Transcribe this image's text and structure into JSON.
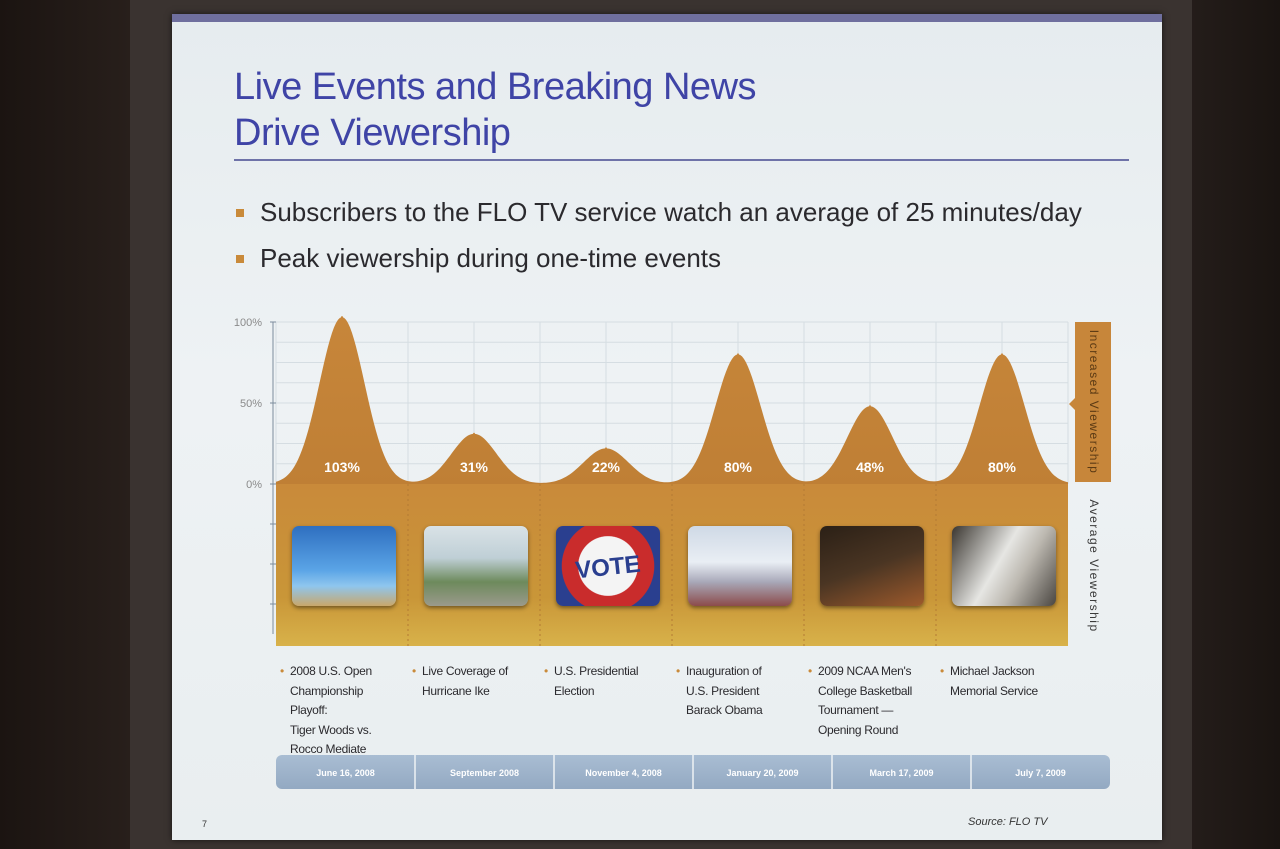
{
  "slide": {
    "title_line1": "Live Events and Breaking News",
    "title_line2": "Drive Viewership",
    "bullets": [
      "Subscribers to the FLO TV service watch an average of 25 minutes/day",
      "Peak viewership during one-time events"
    ],
    "source": "Source: FLO TV",
    "page_number": "7",
    "side_label_top": "Increased Viewership",
    "side_label_bottom": "Average Viewership"
  },
  "colors": {
    "accent": "#c98a3a",
    "title": "#3f44a6",
    "date_band": "#9fb4cb"
  },
  "chart_data": {
    "type": "area",
    "y_ticks": [
      "100%",
      "50%",
      "0%"
    ],
    "ylim": [
      0,
      100
    ],
    "categories": [
      "2008 U.S. Open Championship Playoff: Tiger Woods vs. Rocco Mediate",
      "Live Coverage of Hurricane Ike",
      "U.S. Presidential Election",
      "Inauguration of U.S. President Barack Obama",
      "2009 NCAA Men's College Basketball Tournament — Opening Round",
      "Michael Jackson Memorial Service"
    ],
    "values": [
      103,
      31,
      22,
      80,
      48,
      80
    ],
    "value_labels": [
      "103%",
      "31%",
      "22%",
      "80%",
      "48%",
      "80%"
    ],
    "dates": [
      "June 16, 2008",
      "September 2008",
      "November 4, 2008",
      "January 20, 2009",
      "March 17, 2009",
      "July 7, 2009"
    ],
    "event_lines": [
      [
        "2008 U.S. Open",
        "Championship Playoff:",
        "Tiger Woods vs.",
        "Rocco Mediate"
      ],
      [
        "Live Coverage of",
        "Hurricane Ike"
      ],
      [
        "U.S. Presidential",
        "Election"
      ],
      [
        "Inauguration of",
        "U.S. President",
        "Barack Obama"
      ],
      [
        "2009 NCAA Men's",
        "College Basketball",
        "Tournament —",
        "Opening Round"
      ],
      [
        "Michael Jackson",
        "Memorial Service"
      ]
    ],
    "thumbnail_text": [
      "",
      "",
      "VOTE",
      "",
      "",
      ""
    ]
  }
}
